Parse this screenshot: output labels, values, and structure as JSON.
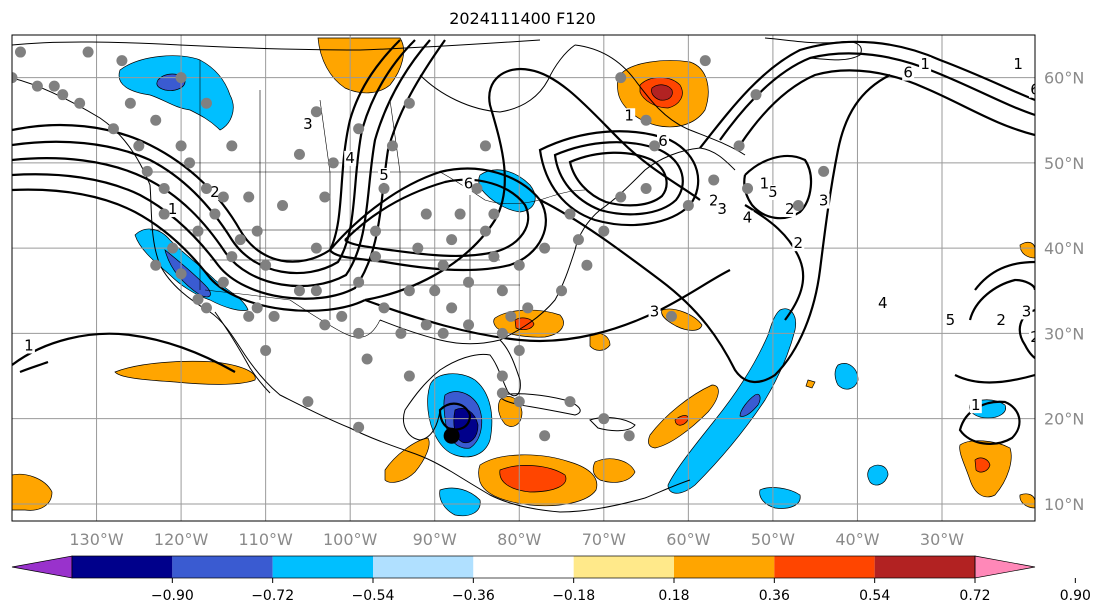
{
  "title": "2024111400 F120",
  "map": {
    "lon_range": [
      -140,
      -19
    ],
    "lat_range": [
      8,
      65
    ],
    "lon_ticks": [
      "130°W",
      "120°W",
      "110°W",
      "100°W",
      "90°W",
      "80°W",
      "70°W",
      "60°W",
      "50°W",
      "40°W",
      "30°W"
    ],
    "lon_values": [
      -130,
      -120,
      -110,
      -100,
      -90,
      -80,
      -70,
      -60,
      -50,
      -40,
      -30
    ],
    "lat_ticks": [
      "10°N",
      "20°N",
      "30°N",
      "40°N",
      "50°N",
      "60°N"
    ],
    "lat_values": [
      10,
      20,
      30,
      40,
      50,
      60
    ],
    "grid": true,
    "contour_labels": [
      "1",
      "2",
      "3",
      "4",
      "5",
      "6",
      "6",
      "1",
      "2",
      "3",
      "4",
      "5",
      "6",
      "1",
      "2",
      "3",
      "1",
      "2",
      "3",
      "4",
      "5",
      "6",
      "1",
      "1",
      "2",
      "3",
      "2",
      "1"
    ],
    "storm_center": {
      "lon": -88,
      "lat": 18
    }
  },
  "colorbar": {
    "labels": [
      "−0.90",
      "−0.72",
      "−0.54",
      "−0.36",
      "−0.18",
      "0.18",
      "0.36",
      "0.54",
      "0.72",
      "0.90"
    ],
    "colors": [
      "#9932cc",
      "#00008b",
      "#3a5bd1",
      "#00bfff",
      "#b0e0ff",
      "#ffffff",
      "#ffe98a",
      "#ffa500",
      "#ff4500",
      "#b22222",
      "#ff88b8"
    ],
    "extend": "both"
  }
}
